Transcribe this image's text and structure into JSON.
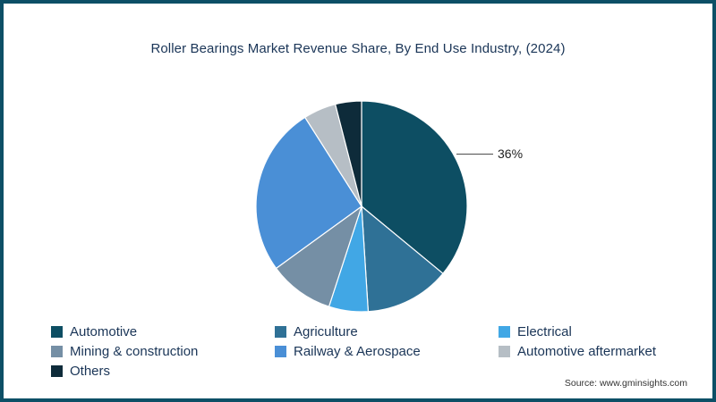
{
  "page": {
    "source": "Source: www.gminsights.com"
  },
  "chart_data": {
    "type": "pie",
    "title": "Roller Bearings Market Revenue Share, By End Use Industry, (2024)",
    "slices": [
      {
        "label": "Automotive",
        "value": 36,
        "color": "#0d4e63"
      },
      {
        "label": "Agriculture",
        "value": 13,
        "color": "#2f7196"
      },
      {
        "label": "Electrical",
        "value": 6,
        "color": "#41a7e5"
      },
      {
        "label": "Mining & construction",
        "value": 10,
        "color": "#758fa5"
      },
      {
        "label": "Railway & Aerospace",
        "value": 26,
        "color": "#4a8fd6"
      },
      {
        "label": "Automotive aftermarket",
        "value": 5,
        "color": "#b6bec5"
      },
      {
        "label": "Others",
        "value": 4,
        "color": "#0e2b3a"
      }
    ],
    "start_angle_deg": -90,
    "direction": "clockwise",
    "annotation": {
      "label": "36%",
      "target": "Automotive"
    },
    "legend_position": "bottom",
    "grid": false
  }
}
